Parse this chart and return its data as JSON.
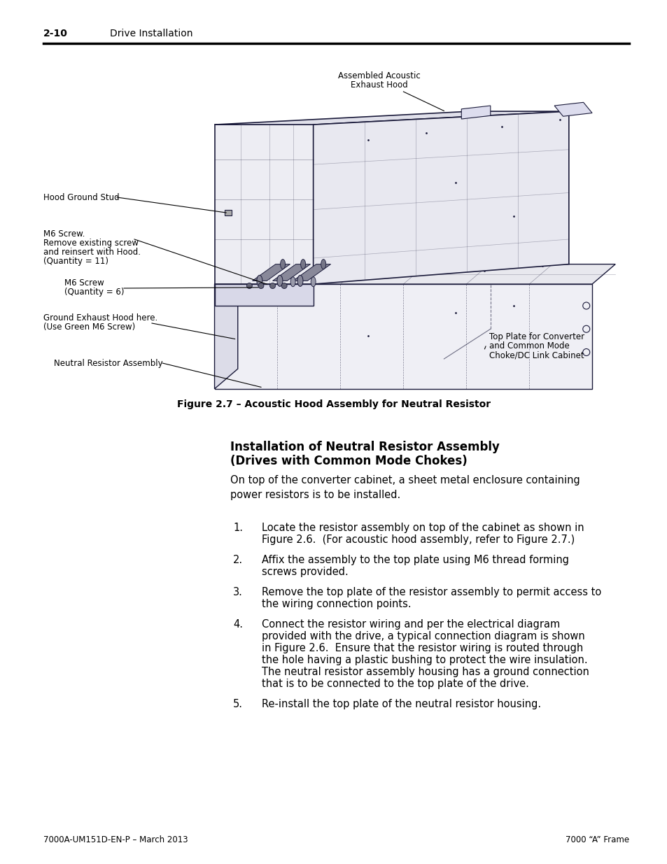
{
  "page_width": 9.54,
  "page_height": 12.35,
  "dpi": 100,
  "bg_color": "#ffffff",
  "header_left": "2-10",
  "header_right": "Drive Installation",
  "footer_left": "7000A-UM151D-EN-P – March 2013",
  "footer_right": "7000 “A” Frame",
  "figure_caption": "Figure 2.7 – Acoustic Hood Assembly for Neutral Resistor",
  "section_title_line1": "Installation of Neutral Resistor Assembly",
  "section_title_line2": "(Drives with Common Mode Chokes)",
  "body_text": "On top of the converter cabinet, a sheet metal enclosure containing\npower resistors is to be installed.",
  "list_items": [
    "Locate the resistor assembly on top of the cabinet as shown in\nFigure 2.6.  (For acoustic hood assembly, refer to Figure 2.7.)",
    "Affix the assembly to the top plate using M6 thread forming\nscrews provided.",
    "Remove the top plate of the resistor assembly to permit access to\nthe wiring connection points.",
    "Connect the resistor wiring and per the electrical diagram\nprovided with the drive, a typical connection diagram is shown\nin Figure 2.6.  Ensure that the resistor wiring is routed through\nthe hole having a plastic bushing to protect the wire insulation.\nThe neutral resistor assembly housing has a ground connection\nthat is to be connected to the top plate of the drive.",
    "Re-install the top plate of the neutral resistor housing."
  ],
  "text_color": "#000000",
  "draw_color": "#1a1a3a",
  "font_size_body": 10.5,
  "font_size_header": 10.0,
  "font_size_caption": 10.0,
  "font_size_section": 12.0,
  "font_size_list": 10.5,
  "font_size_callout": 8.5,
  "callout_color": "#000000"
}
